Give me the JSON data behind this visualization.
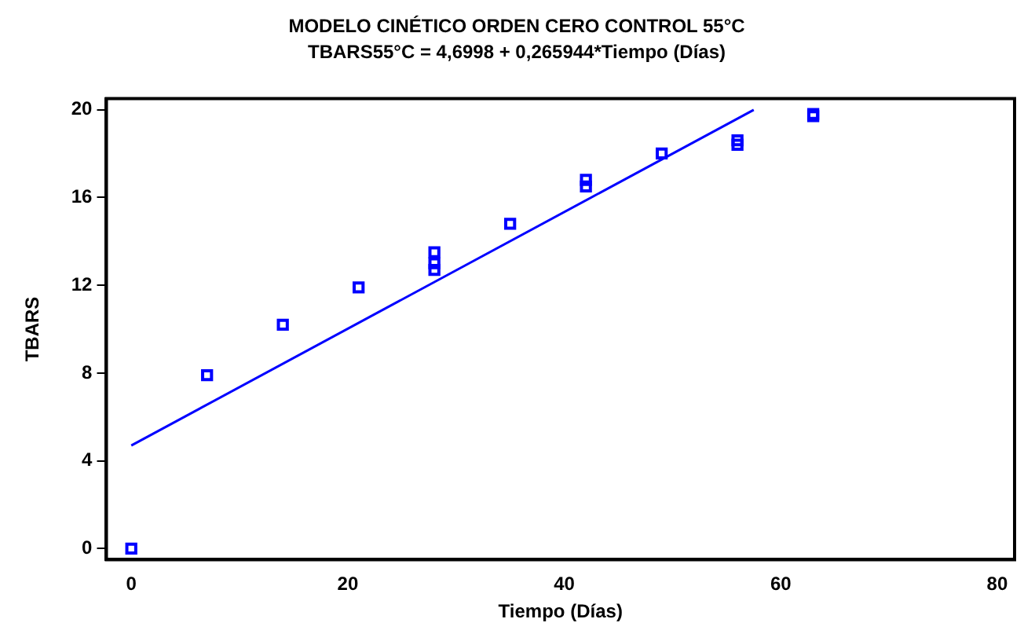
{
  "chart_data": {
    "type": "scatter",
    "title": "MODELO CINÉTICO ORDEN CERO CONTROL 55°C",
    "subtitle": "TBARS55°C = 4,6998 + 0,265944*Tiempo (Días)",
    "xlabel": "Tiempo (Días)",
    "ylabel": "TBARS",
    "x": [
      0,
      7,
      14,
      21,
      28,
      28,
      28,
      35,
      42,
      42,
      49,
      56,
      56,
      63,
      63
    ],
    "series": [
      {
        "type": "scatter",
        "color": "#0000ff",
        "marker": "square",
        "values": [
          0,
          7.9,
          10.2,
          11.9,
          13.5,
          13.0,
          12.7,
          14.8,
          16.5,
          16.8,
          18.0,
          18.4,
          18.6,
          19.7,
          19.8
        ]
      },
      {
        "type": "line",
        "color": "#0000ff",
        "x": [
          0,
          57.5
        ],
        "values": [
          4.7,
          19.99
        ],
        "marker": "none",
        "line_style": "solid"
      }
    ],
    "xlim": [
      -2.3,
      81.6
    ],
    "xticks": [
      0,
      20,
      40,
      60,
      80
    ],
    "ylim": [
      -0.5,
      20.5
    ],
    "yticks": [
      0,
      4,
      8,
      12,
      16,
      20
    ],
    "grid": false,
    "legend": false
  }
}
